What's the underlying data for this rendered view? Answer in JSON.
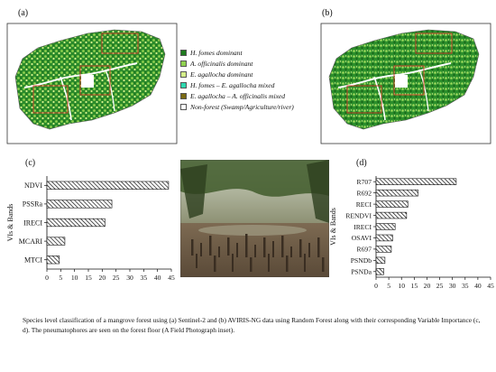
{
  "panels": {
    "a": "(a)",
    "b": "(b)",
    "c": "(c)",
    "d": "(d)"
  },
  "legend": [
    {
      "label": "H. fomes dominant",
      "color": "#1e7a1e"
    },
    {
      "label": "A. officinalis dominant",
      "color": "#8fd14f"
    },
    {
      "label": "E. agallocha dominant",
      "color": "#d4f08a"
    },
    {
      "label": "H. fomes – E. agallocha mixed",
      "color": "#2fd9b0"
    },
    {
      "label": "E. agallocha – A. officinalis mixed",
      "color": "#7a6a12"
    },
    {
      "label": "Non-forest (Swamp/Agriculture/river)",
      "color": "#ffffff"
    }
  ],
  "colors": {
    "map_border": "#333333",
    "study_box": "#d23a2a",
    "river": "#ffffff"
  },
  "chart_data": [
    {
      "type": "bar",
      "panel": "(c)",
      "ylabel": "VIs & Bands",
      "xlabel": "",
      "categories": [
        "NDVI",
        "PSSRa",
        "IRECI",
        "MCARI",
        "MTCI"
      ],
      "values": [
        44,
        23.5,
        21,
        6.5,
        4.5
      ],
      "xlim": [
        0,
        45
      ],
      "xticks": [
        "0",
        "5",
        "10",
        "15",
        "20",
        "25",
        "30",
        "35",
        "40",
        "45"
      ],
      "grid": false,
      "bar_fill": "hatched"
    },
    {
      "type": "bar",
      "panel": "(d)",
      "ylabel": "VIs & Bands",
      "xlabel": "",
      "categories": [
        "R707",
        "R692",
        "RECI",
        "RENDVI",
        "IRECI",
        "OSAVI",
        "R697",
        "PSNDb",
        "PSNDa"
      ],
      "values": [
        31.5,
        16.5,
        12.5,
        12,
        7.5,
        6.5,
        6,
        3.5,
        3
      ],
      "xlim": [
        0,
        45
      ],
      "xticks": [
        "0",
        "5",
        "10",
        "15",
        "20",
        "25",
        "30",
        "35",
        "40",
        "45"
      ],
      "grid": false,
      "bar_fill": "hatched"
    }
  ],
  "caption": "Species level classification of a mangrove forest using (a) Sentinel-2 and (b) AVIRIS-NG data using Random Forest along with their corresponding Variable Importance (c, d). The pneumatophores are seen on the forest floor (A Field Photograph inset)."
}
